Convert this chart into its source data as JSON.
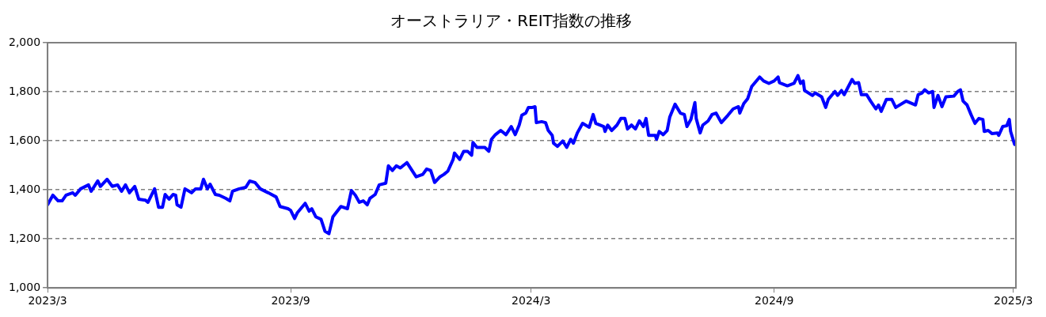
{
  "chart_data": {
    "type": "line",
    "title": "オーストラリア・REIT指数の推移",
    "x": [
      "2023-03-01",
      "2023-03-05",
      "2023-03-09",
      "2023-03-12",
      "2023-03-15",
      "2023-03-20",
      "2023-03-22",
      "2023-03-26",
      "2023-04-01",
      "2023-04-03",
      "2023-04-08",
      "2023-04-10",
      "2023-04-15",
      "2023-04-19",
      "2023-04-23",
      "2023-04-26",
      "2023-04-29",
      "2023-05-02",
      "2023-05-06",
      "2023-05-09",
      "2023-05-14",
      "2023-05-16",
      "2023-05-21",
      "2023-05-24",
      "2023-05-27",
      "2023-05-29",
      "2023-06-01",
      "2023-06-04",
      "2023-06-06",
      "2023-06-07",
      "2023-06-10",
      "2023-06-13",
      "2023-06-18",
      "2023-06-21",
      "2023-06-25",
      "2023-06-27",
      "2023-06-30",
      "2023-07-02",
      "2023-07-06",
      "2023-07-09",
      "2023-07-14",
      "2023-07-17",
      "2023-07-19",
      "2023-07-24",
      "2023-07-29",
      "2023-08-01",
      "2023-08-05",
      "2023-08-09",
      "2023-08-15",
      "2023-08-21",
      "2023-08-24",
      "2023-08-30",
      "2023-09-01",
      "2023-09-04",
      "2023-09-06",
      "2023-09-12",
      "2023-09-15",
      "2023-09-17",
      "2023-09-20",
      "2023-09-24",
      "2023-09-27",
      "2023-09-30",
      "2023-10-03",
      "2023-10-09",
      "2023-10-14",
      "2023-10-17",
      "2023-10-20",
      "2023-10-23",
      "2023-10-26",
      "2023-10-29",
      "2023-10-31",
      "2023-11-04",
      "2023-11-07",
      "2023-11-12",
      "2023-11-14",
      "2023-11-17",
      "2023-11-20",
      "2023-11-23",
      "2023-11-28",
      "2023-12-05",
      "2023-12-10",
      "2023-12-13",
      "2023-12-16",
      "2023-12-19",
      "2023-12-23",
      "2023-12-26",
      "2023-12-29",
      "2024-01-02",
      "2024-01-03",
      "2024-01-07",
      "2024-01-10",
      "2024-01-13",
      "2024-01-16",
      "2024-01-17",
      "2024-01-20",
      "2024-01-26",
      "2024-01-29",
      "2024-01-31",
      "2024-02-03",
      "2024-02-07",
      "2024-02-11",
      "2024-02-15",
      "2024-02-18",
      "2024-02-21",
      "2024-02-23",
      "2024-02-26",
      "2024-02-28",
      "2024-03-02",
      "2024-03-04",
      "2024-03-05",
      "2024-03-09",
      "2024-03-12",
      "2024-03-14",
      "2024-03-17",
      "2024-03-18",
      "2024-03-21",
      "2024-03-25",
      "2024-03-28",
      "2024-03-31",
      "2024-04-02",
      "2024-04-05",
      "2024-04-09",
      "2024-04-14",
      "2024-04-17",
      "2024-04-19",
      "2024-04-25",
      "2024-04-26",
      "2024-04-28",
      "2024-05-01",
      "2024-05-05",
      "2024-05-08",
      "2024-05-11",
      "2024-05-13",
      "2024-05-16",
      "2024-05-19",
      "2024-05-22",
      "2024-05-25",
      "2024-05-27",
      "2024-05-29",
      "2024-06-03",
      "2024-06-04",
      "2024-06-06",
      "2024-06-09",
      "2024-06-12",
      "2024-06-14",
      "2024-06-18",
      "2024-06-22",
      "2024-06-25",
      "2024-06-27",
      "2024-06-30",
      "2024-07-03",
      "2024-07-04",
      "2024-07-07",
      "2024-07-09",
      "2024-07-13",
      "2024-07-16",
      "2024-07-19",
      "2024-07-23",
      "2024-07-28",
      "2024-08-01",
      "2024-08-05",
      "2024-08-06",
      "2024-08-09",
      "2024-08-12",
      "2024-08-15",
      "2024-08-21",
      "2024-08-24",
      "2024-08-28",
      "2024-09-01",
      "2024-09-04",
      "2024-09-05",
      "2024-09-11",
      "2024-09-16",
      "2024-09-19",
      "2024-09-21",
      "2024-09-23",
      "2024-09-24",
      "2024-09-30",
      "2024-10-02",
      "2024-10-07",
      "2024-10-10",
      "2024-10-12",
      "2024-10-17",
      "2024-10-19",
      "2024-10-22",
      "2024-10-24",
      "2024-10-30",
      "2024-11-01",
      "2024-11-04",
      "2024-11-06",
      "2024-11-10",
      "2024-11-13",
      "2024-11-17",
      "2024-11-19",
      "2024-11-21",
      "2024-11-25",
      "2024-11-29",
      "2024-12-02",
      "2024-12-10",
      "2024-12-17",
      "2024-12-19",
      "2024-12-22",
      "2024-12-24",
      "2024-12-27",
      "2024-12-30",
      "2024-12-31",
      "2025-01-03",
      "2025-01-06",
      "2025-01-09",
      "2025-01-15",
      "2025-01-18",
      "2025-01-20",
      "2025-01-22",
      "2025-01-25",
      "2025-01-28",
      "2025-01-31",
      "2025-02-03",
      "2025-02-06",
      "2025-02-07",
      "2025-02-10",
      "2025-02-13",
      "2025-02-17",
      "2025-02-18",
      "2025-02-21",
      "2025-02-24",
      "2025-02-26",
      "2025-02-27",
      "2025-03-02"
    ],
    "series": [
      {
        "color": "#0000ff",
        "values": [
          1339,
          1378,
          1355,
          1355,
          1378,
          1388,
          1378,
          1404,
          1420,
          1394,
          1436,
          1414,
          1443,
          1414,
          1420,
          1394,
          1420,
          1388,
          1414,
          1362,
          1358,
          1349,
          1404,
          1329,
          1329,
          1381,
          1362,
          1381,
          1378,
          1339,
          1329,
          1404,
          1388,
          1404,
          1404,
          1443,
          1404,
          1423,
          1381,
          1378,
          1365,
          1355,
          1394,
          1404,
          1410,
          1436,
          1430,
          1404,
          1388,
          1371,
          1332,
          1323,
          1316,
          1283,
          1306,
          1345,
          1313,
          1323,
          1290,
          1280,
          1231,
          1221,
          1290,
          1332,
          1323,
          1397,
          1378,
          1349,
          1355,
          1339,
          1365,
          1381,
          1420,
          1427,
          1498,
          1479,
          1498,
          1489,
          1511,
          1453,
          1463,
          1485,
          1479,
          1430,
          1453,
          1463,
          1476,
          1524,
          1550,
          1524,
          1557,
          1557,
          1541,
          1593,
          1573,
          1573,
          1557,
          1606,
          1625,
          1642,
          1625,
          1658,
          1625,
          1664,
          1704,
          1713,
          1736,
          1736,
          1739,
          1674,
          1678,
          1674,
          1642,
          1622,
          1590,
          1577,
          1599,
          1573,
          1606,
          1590,
          1632,
          1671,
          1655,
          1707,
          1671,
          1658,
          1638,
          1664,
          1642,
          1664,
          1691,
          1691,
          1648,
          1664,
          1648,
          1681,
          1658,
          1691,
          1622,
          1622,
          1606,
          1638,
          1625,
          1642,
          1697,
          1749,
          1713,
          1707,
          1658,
          1687,
          1756,
          1691,
          1632,
          1664,
          1681,
          1707,
          1713,
          1674,
          1704,
          1730,
          1739,
          1713,
          1752,
          1772,
          1821,
          1860,
          1844,
          1834,
          1844,
          1860,
          1837,
          1824,
          1834,
          1866,
          1834,
          1844,
          1805,
          1785,
          1795,
          1779,
          1736,
          1769,
          1801,
          1785,
          1805,
          1788,
          1850,
          1834,
          1837,
          1788,
          1788,
          1762,
          1730,
          1746,
          1720,
          1769,
          1769,
          1736,
          1762,
          1746,
          1788,
          1795,
          1808,
          1795,
          1801,
          1736,
          1785,
          1739,
          1779,
          1782,
          1801,
          1808,
          1762,
          1746,
          1707,
          1671,
          1691,
          1687,
          1638,
          1642,
          1629,
          1632,
          1622,
          1658,
          1661,
          1687,
          1638,
          1585
        ]
      }
    ],
    "xlim": [
      "2023-03-01",
      "2025-03-03"
    ],
    "xticks": [
      {
        "value": "2023-03",
        "label": "2023/3"
      },
      {
        "value": "2023-09",
        "label": "2023/9"
      },
      {
        "value": "2024-03",
        "label": "2024/3"
      },
      {
        "value": "2024-09",
        "label": "2024/9"
      },
      {
        "value": "2025-03",
        "label": "2025/3"
      }
    ],
    "ylim": [
      1000,
      2000
    ],
    "yticks": [
      {
        "value": 1000,
        "label": "1,000"
      },
      {
        "value": 1200,
        "label": "1,200"
      },
      {
        "value": 1400,
        "label": "1,400"
      },
      {
        "value": 1600,
        "label": "1,600"
      },
      {
        "value": 1800,
        "label": "1,800"
      },
      {
        "value": 2000,
        "label": "2,000"
      }
    ],
    "grid": "y",
    "marker": "none",
    "line_style": "solid"
  }
}
